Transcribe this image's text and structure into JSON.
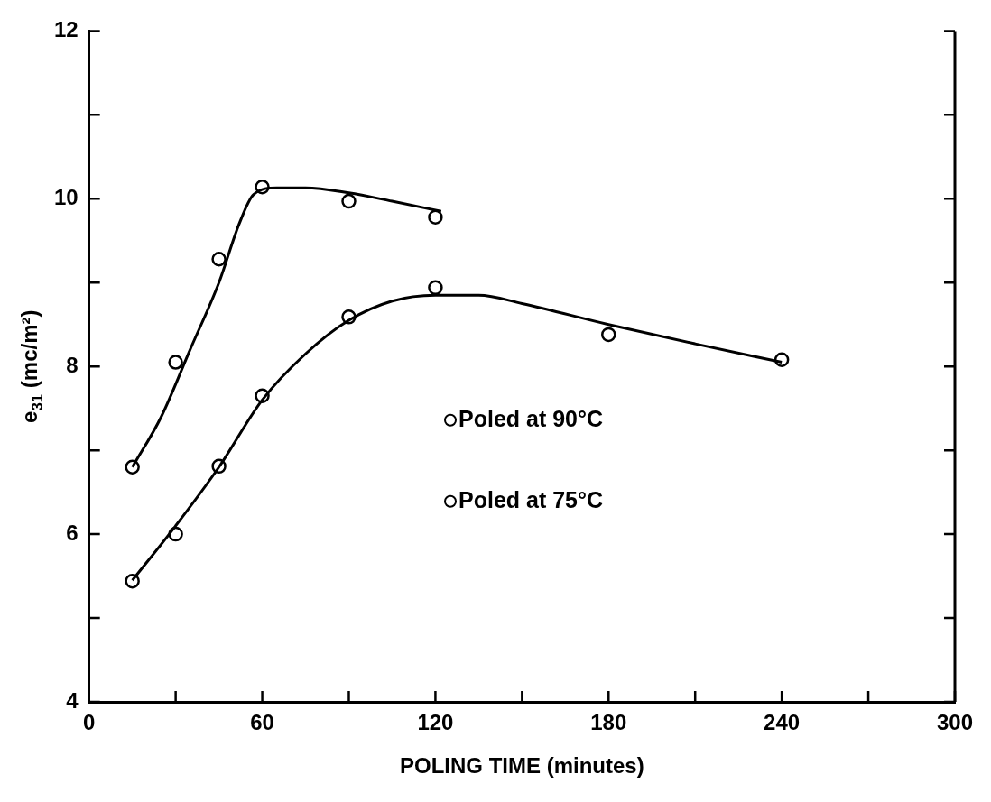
{
  "chart_data": {
    "type": "scatter",
    "xlabel": "POLING TIME (minutes)",
    "ylabel": "e$_{31}$ (mc/m²)",
    "xlim": [
      0,
      300
    ],
    "xticks": [
      0,
      {
        "value": 30,
        "label": null
      },
      60,
      {
        "value": 90,
        "label": null
      },
      120,
      {
        "value": 150,
        "label": null
      },
      180,
      {
        "value": 210,
        "label": null
      },
      240,
      {
        "value": 270,
        "label": null
      },
      300
    ],
    "ylim": [
      4,
      12
    ],
    "yticks": [
      4,
      {
        "value": 5,
        "label": null
      },
      6,
      {
        "value": 7,
        "label": null
      },
      8,
      {
        "value": 9,
        "label": null
      },
      10,
      {
        "value": 11,
        "label": null
      },
      12
    ],
    "grid": false,
    "legend": "right",
    "series": [
      {
        "name": "Poled at 90°C",
        "type": "scatter",
        "marker": "circle",
        "color": "#000000",
        "x": [
          15,
          30,
          45,
          60,
          90,
          120
        ],
        "values": [
          6.8,
          8.05,
          9.28,
          10.14,
          9.97,
          9.78
        ]
      },
      {
        "name": "Poled at 75°C",
        "type": "scatter",
        "marker": "circle",
        "color": "#000000",
        "x": [
          15,
          30,
          45,
          60,
          90,
          120,
          180,
          240
        ],
        "values": [
          5.44,
          6.0,
          6.81,
          7.65,
          8.59,
          8.94,
          8.38,
          8.08
        ]
      },
      {
        "type": "line",
        "marker": "none",
        "color": "#000000",
        "x": [
          15,
          25,
          35,
          45,
          52,
          57,
          65,
          75,
          90,
          105,
          122
        ],
        "values": [
          6.8,
          7.4,
          8.2,
          9.0,
          9.7,
          10.05,
          10.13,
          10.13,
          10.07,
          9.97,
          9.85
        ]
      },
      {
        "type": "line",
        "marker": "none",
        "color": "#000000",
        "x": [
          15,
          30,
          45,
          60,
          75,
          90,
          105,
          120,
          135,
          150,
          180,
          210,
          240
        ],
        "values": [
          5.45,
          6.1,
          6.8,
          7.6,
          8.15,
          8.55,
          8.78,
          8.85,
          8.85,
          8.75,
          8.5,
          8.27,
          8.05
        ]
      }
    ]
  }
}
